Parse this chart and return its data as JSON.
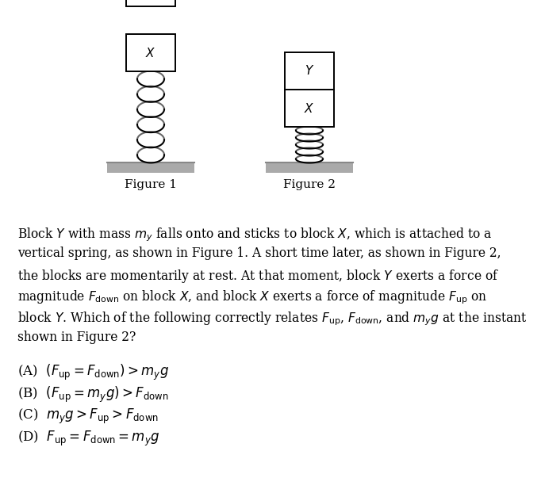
{
  "bg_color": "#ffffff",
  "fig_width": 6.87,
  "fig_height": 6.27,
  "block_color": "#ffffff",
  "block_edge_color": "#000000",
  "spring_color": "#000000",
  "platform_color": "#aaaaaa",
  "platform_top_color": "#888888",
  "text_color": "#000000",
  "figure1_label": "Figure 1",
  "figure2_label": "Figure 2",
  "paragraph_lines": [
    "Block $Y$ with mass $m_y$ falls onto and sticks to block $X$, which is attached to a",
    "vertical spring, as shown in Figure 1. A short time later, as shown in Figure 2,",
    "the blocks are momentarily at rest. At that moment, block $Y$ exerts a force of",
    "magnitude $F_{\\rm down}$ on block $X$, and block $X$ exerts a force of magnitude $F_{\\rm up}$ on",
    "block $Y$. Which of the following correctly relates $F_{\\rm up}$, $F_{\\rm down}$, and $m_y g$ at the instant",
    "shown in Figure 2?"
  ],
  "choices": [
    "(A)  $(F_{\\rm up} = F_{\\rm down}) > m_y g$",
    "(B)  $(F_{\\rm up} = m_y g) > F_{\\rm down}$",
    "(C)  $m_y g > F_{\\rm up} > F_{\\rm down}$",
    "(D)  $F_{\\rm up} = F_{\\rm down} = m_y g$"
  ]
}
